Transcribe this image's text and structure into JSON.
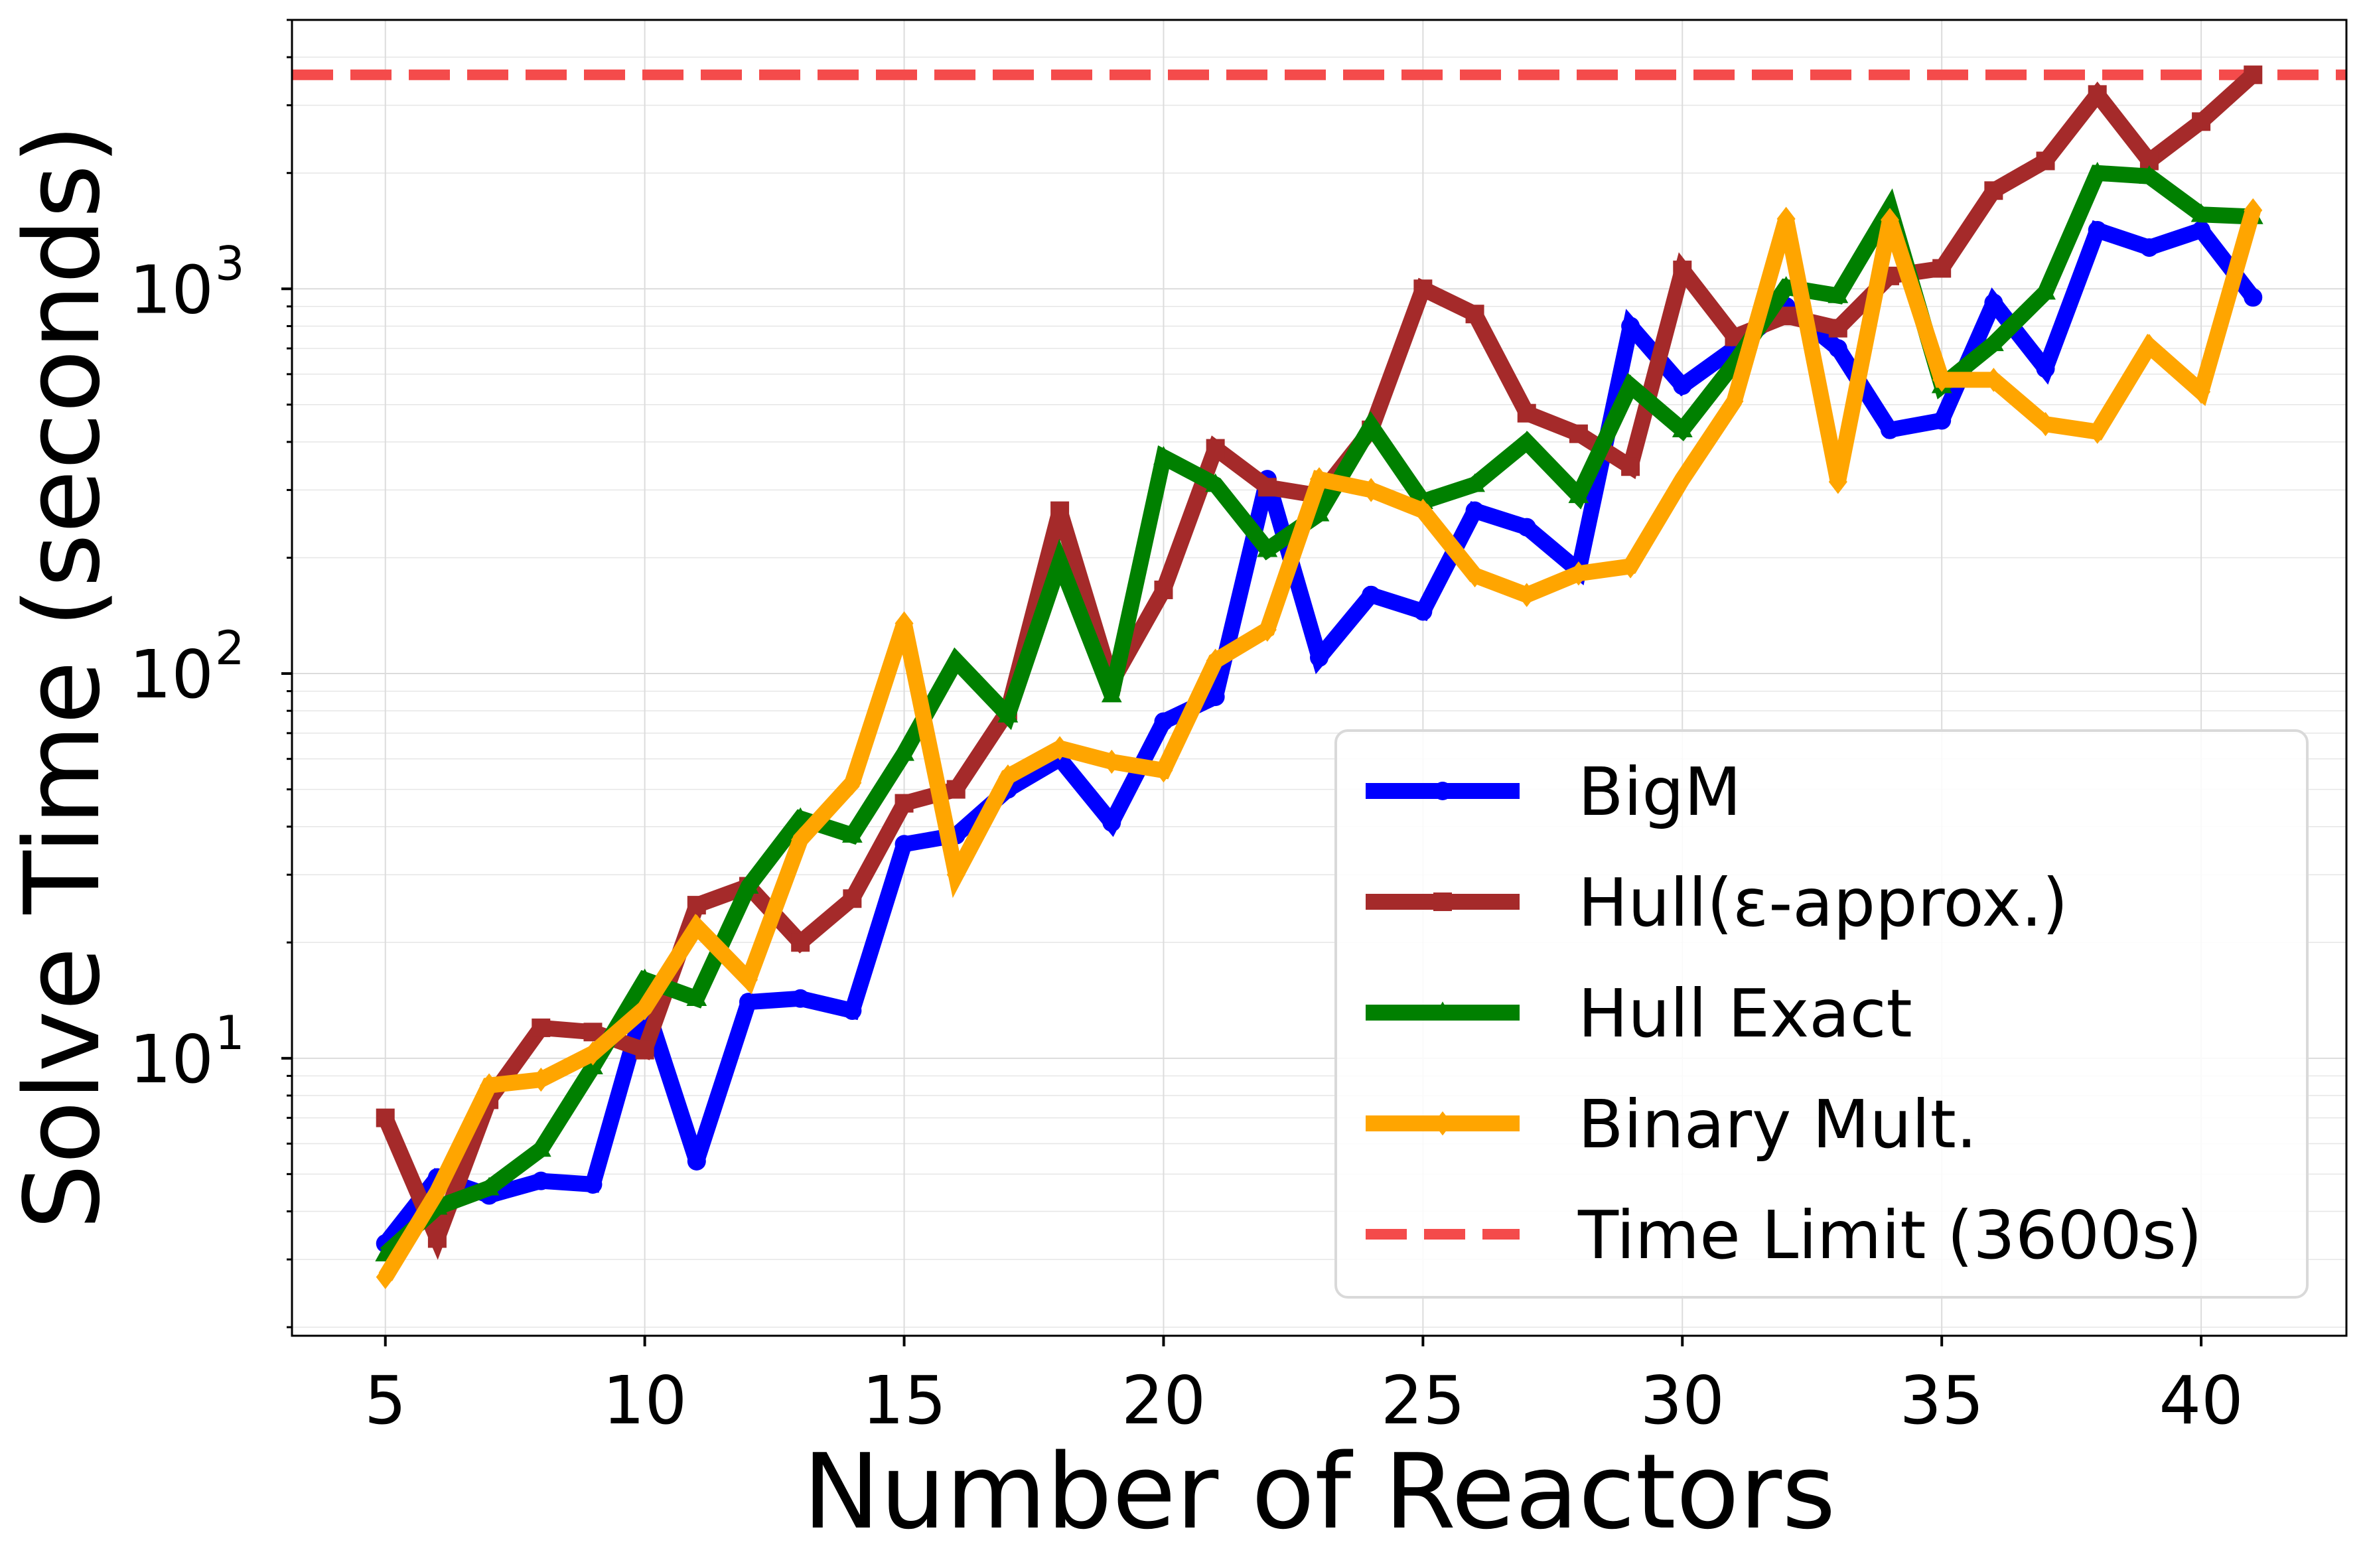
{
  "chart_data": {
    "type": "line",
    "title": "",
    "xlabel": "Number of Reactors",
    "ylabel": "Solve Time (seconds)",
    "yscale": "log",
    "xlim": [
      3.2,
      42.8
    ],
    "ylim": [
      1.9,
      5000
    ],
    "grid": true,
    "legend_position": "lower-right",
    "x": [
      5,
      6,
      7,
      8,
      9,
      10,
      11,
      12,
      13,
      14,
      15,
      16,
      17,
      18,
      19,
      20,
      21,
      22,
      23,
      24,
      25,
      26,
      27,
      28,
      29,
      30,
      31,
      32,
      33,
      34,
      35,
      36,
      37,
      38,
      39,
      40,
      41
    ],
    "xticks": [
      5,
      10,
      15,
      20,
      25,
      30,
      35,
      40
    ],
    "xtick_labels": [
      "5",
      "10",
      "15",
      "20",
      "25",
      "30",
      "35",
      "40"
    ],
    "yticks": [
      10,
      100,
      1000
    ],
    "ytick_labels": [
      {
        "base": "10",
        "exp": "1"
      },
      {
        "base": "10",
        "exp": "2"
      },
      {
        "base": "10",
        "exp": "3"
      }
    ],
    "series": [
      {
        "name": "BigM",
        "color": "#0000ff",
        "marker": "circle",
        "values": [
          3.3,
          4.9,
          4.4,
          4.8,
          4.7,
          14,
          5.4,
          14,
          14.3,
          13.3,
          36,
          38,
          50,
          60,
          41,
          75,
          87,
          320,
          110,
          160,
          145,
          265,
          240,
          185,
          800,
          560,
          700,
          900,
          700,
          430,
          455,
          920,
          620,
          1420,
          1280,
          1420,
          950
        ]
      },
      {
        "name": "Hull(ε-approx.)",
        "color": "#a52a2a",
        "marker": "square",
        "values": [
          7,
          3.4,
          7.8,
          12,
          11.7,
          10.5,
          25,
          28,
          20,
          26,
          46,
          50,
          80,
          265,
          95,
          165,
          385,
          305,
          290,
          430,
          1000,
          860,
          475,
          420,
          345,
          1120,
          750,
          850,
          790,
          1080,
          1130,
          1800,
          2150,
          3200,
          2150,
          2720,
          3600
        ]
      },
      {
        "name": "Hull Exact",
        "color": "#008000",
        "marker": "triangle",
        "values": [
          3.1,
          4.1,
          4.6,
          5.8,
          9.5,
          16,
          14.3,
          28,
          42,
          38,
          62,
          108,
          78,
          195,
          88,
          365,
          310,
          210,
          260,
          440,
          280,
          310,
          400,
          290,
          560,
          430,
          640,
          1010,
          960,
          1620,
          560,
          720,
          980,
          2000,
          1960,
          1560,
          1540
        ]
      },
      {
        "name": "Binary Mult.",
        "color": "#ffa500",
        "marker": "diamond",
        "values": [
          2.7,
          4.5,
          8.5,
          8.8,
          10.3,
          13.5,
          22,
          16,
          37,
          52,
          135,
          30,
          54,
          64,
          59,
          56,
          108,
          130,
          320,
          300,
          265,
          180,
          160,
          182,
          190,
          320,
          510,
          1520,
          315,
          1510,
          580,
          580,
          445,
          425,
          710,
          540,
          1600
        ]
      }
    ],
    "reference_lines": [
      {
        "name": "Time Limit (3600s)",
        "color": "#f44b4b",
        "style": "dashed",
        "y": 3600
      }
    ]
  }
}
